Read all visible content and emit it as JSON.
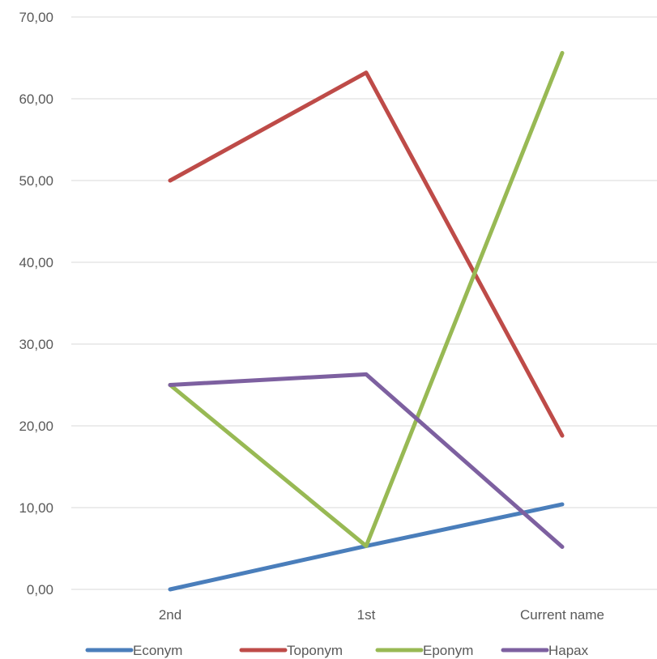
{
  "chart_data": {
    "type": "line",
    "categories": [
      "2nd",
      "1st",
      "Current name"
    ],
    "ylim": [
      0,
      70
    ],
    "y_ticks": [
      "0,00",
      "10,00",
      "20,00",
      "30,00",
      "40,00",
      "50,00",
      "60,00",
      "70,00"
    ],
    "y_tick_values": [
      0,
      10,
      20,
      30,
      40,
      50,
      60,
      70
    ],
    "grid": true,
    "legend_position": "bottom",
    "title": "",
    "xlabel": "",
    "ylabel": "",
    "series": [
      {
        "name": "Econym",
        "color": "#4a7ebb",
        "values": [
          0,
          5.3,
          10.4
        ]
      },
      {
        "name": "Toponym",
        "color": "#be4b48",
        "values": [
          50,
          63.2,
          18.8
        ]
      },
      {
        "name": "Eponym",
        "color": "#98b954",
        "values": [
          25,
          5.3,
          65.6
        ]
      },
      {
        "name": "Hapax",
        "color": "#7d60a0",
        "values": [
          25,
          26.3,
          5.2
        ]
      }
    ]
  }
}
